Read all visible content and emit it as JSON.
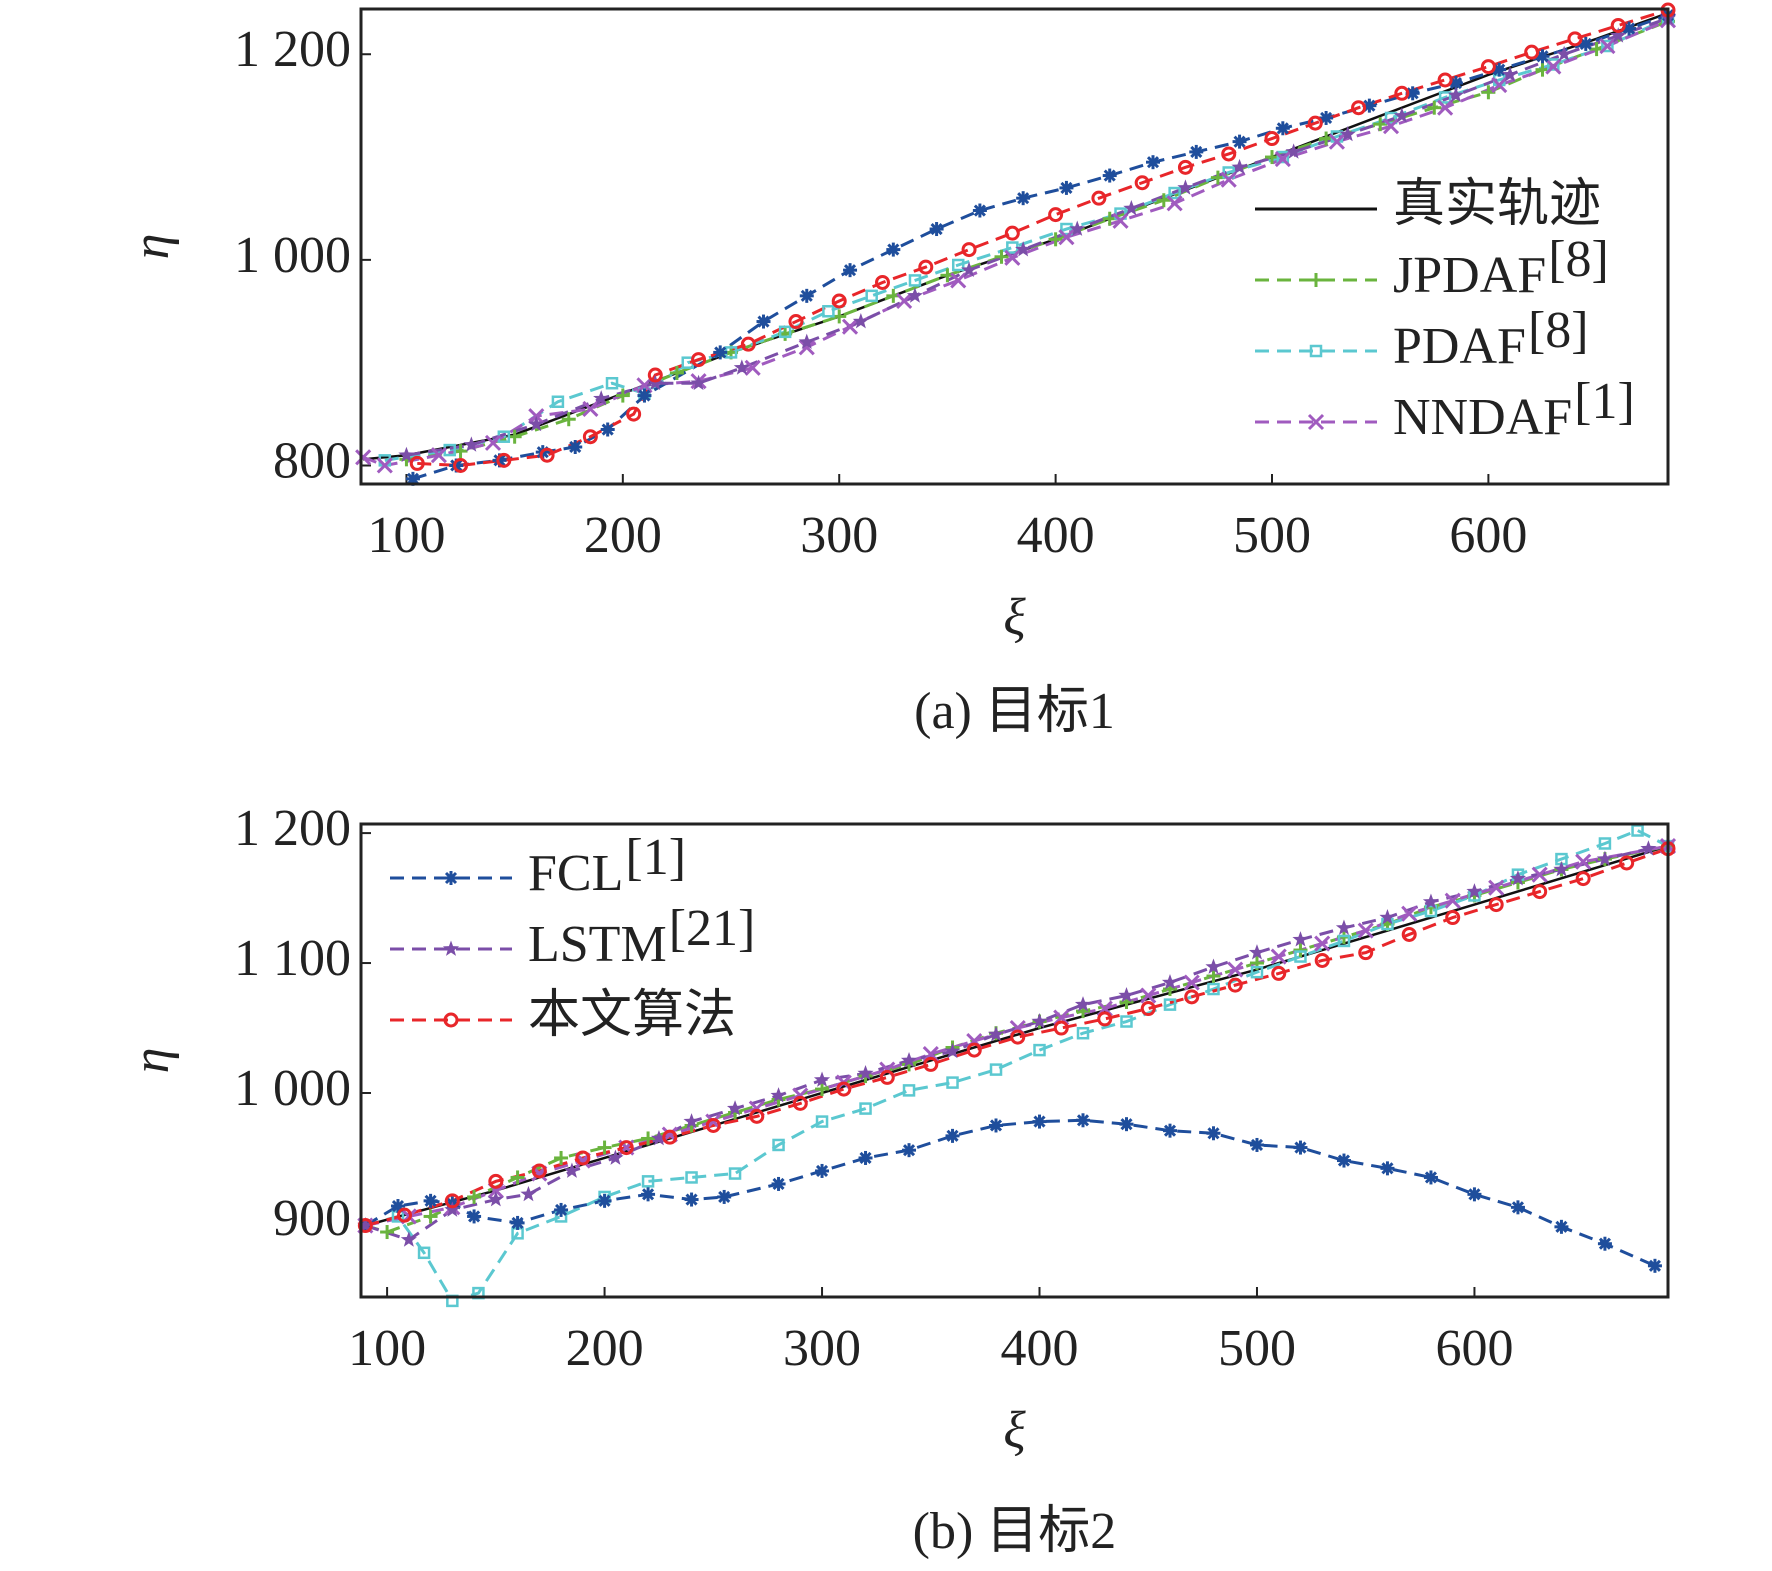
{
  "chart_data": [
    {
      "type": "line",
      "caption": "(a) 目标1",
      "xlabel": "ξ",
      "ylabel": "η",
      "xlim": [
        79,
        683
      ],
      "ylim": [
        782,
        1244
      ],
      "xticks": [
        100,
        200,
        300,
        400,
        500,
        600
      ],
      "yticks": [
        {
          "value": 800,
          "label": "800"
        },
        {
          "value": 1000,
          "label": "1 000"
        },
        {
          "value": 1200,
          "label": "1 200"
        }
      ],
      "legend": "right",
      "series": [
        {
          "name": "真实轨迹",
          "color": "#111111",
          "marker": "none",
          "dash": false,
          "in_legend": true,
          "x": [
            80,
            100,
            150,
            200,
            250,
            300,
            350,
            400,
            450,
            500,
            550,
            600,
            650,
            683
          ],
          "values": [
            806,
            810,
            830,
            870,
            910,
            945,
            985,
            1020,
            1060,
            1100,
            1140,
            1180,
            1215,
            1240
          ]
        },
        {
          "name": "JPDAF",
          "ref": "[8]",
          "color": "#6ab43e",
          "marker": "plus",
          "dash": true,
          "in_legend": true,
          "x": [
            100,
            125,
            150,
            175,
            200,
            225,
            250,
            275,
            300,
            325,
            350,
            375,
            400,
            425,
            450,
            475,
            500,
            525,
            550,
            575,
            600,
            625,
            650,
            683
          ],
          "values": [
            806,
            814,
            828,
            845,
            868,
            890,
            910,
            928,
            945,
            965,
            985,
            1003,
            1020,
            1040,
            1058,
            1080,
            1100,
            1118,
            1132,
            1148,
            1163,
            1185,
            1205,
            1232
          ]
        },
        {
          "name": "PDAF",
          "ref": "[8]",
          "color": "#5bc8d0",
          "marker": "square",
          "dash": true,
          "in_legend": true,
          "x": [
            90,
            120,
            145,
            170,
            195,
            210,
            230,
            250,
            275,
            295,
            315,
            335,
            355,
            380,
            405,
            430,
            455,
            480,
            505,
            530,
            555,
            580,
            605,
            630,
            655,
            683
          ],
          "values": [
            805,
            815,
            828,
            862,
            880,
            870,
            900,
            910,
            930,
            950,
            965,
            980,
            995,
            1012,
            1030,
            1045,
            1065,
            1085,
            1100,
            1120,
            1138,
            1158,
            1175,
            1190,
            1208,
            1235
          ]
        },
        {
          "name": "NNDAF",
          "ref": "[1]",
          "color": "#a05bbf",
          "marker": "cross",
          "dash": true,
          "in_legend": true,
          "x": [
            80,
            90,
            115,
            140,
            160,
            185,
            210,
            235,
            260,
            285,
            305,
            330,
            355,
            380,
            405,
            430,
            455,
            480,
            505,
            530,
            555,
            580,
            605,
            630,
            655,
            683
          ],
          "values": [
            808,
            800,
            810,
            822,
            848,
            855,
            878,
            882,
            895,
            915,
            935,
            960,
            980,
            1002,
            1022,
            1038,
            1055,
            1078,
            1098,
            1115,
            1130,
            1148,
            1170,
            1188,
            1208,
            1233
          ]
        },
        {
          "name": "FCL",
          "ref": "[1]",
          "color": "#1f4e9c",
          "marker": "asterisk",
          "dash": true,
          "in_legend": false,
          "x": [
            103,
            123,
            143,
            163,
            178,
            193,
            210,
            245,
            265,
            285,
            305,
            325,
            345,
            365,
            385,
            405,
            425,
            445,
            465,
            485,
            505,
            525,
            545,
            565,
            585,
            605,
            625,
            645,
            665,
            683
          ],
          "values": [
            787,
            800,
            805,
            813,
            818,
            835,
            868,
            910,
            940,
            965,
            990,
            1010,
            1030,
            1048,
            1060,
            1070,
            1082,
            1095,
            1105,
            1115,
            1128,
            1138,
            1150,
            1162,
            1172,
            1185,
            1198,
            1210,
            1225,
            1238
          ]
        },
        {
          "name": "LSTM",
          "ref": "[21]",
          "color": "#7b4ea8",
          "marker": "star",
          "dash": true,
          "in_legend": false,
          "x": [
            100,
            130,
            160,
            190,
            215,
            235,
            255,
            285,
            310,
            335,
            360,
            385,
            410,
            435,
            460,
            485,
            510,
            535,
            560,
            585,
            610,
            635,
            660,
            683
          ],
          "values": [
            810,
            820,
            840,
            865,
            880,
            880,
            895,
            920,
            940,
            965,
            990,
            1010,
            1030,
            1050,
            1070,
            1090,
            1105,
            1122,
            1140,
            1160,
            1180,
            1200,
            1218,
            1235
          ]
        },
        {
          "name": "本文算法",
          "color": "#e8262a",
          "marker": "circle",
          "dash": true,
          "in_legend": false,
          "x": [
            105,
            125,
            145,
            165,
            185,
            205,
            215,
            235,
            258,
            280,
            300,
            320,
            340,
            360,
            380,
            400,
            420,
            440,
            460,
            480,
            500,
            520,
            540,
            560,
            580,
            600,
            620,
            640,
            660,
            683
          ],
          "values": [
            802,
            800,
            805,
            810,
            828,
            850,
            888,
            903,
            918,
            940,
            960,
            978,
            993,
            1010,
            1026,
            1044,
            1060,
            1075,
            1090,
            1103,
            1118,
            1133,
            1148,
            1162,
            1175,
            1188,
            1202,
            1215,
            1228,
            1243
          ]
        }
      ]
    },
    {
      "type": "line",
      "caption": "(b) 目标2",
      "xlabel": "ξ",
      "ylabel": "η",
      "xlim": [
        88,
        689
      ],
      "ylim": [
        843,
        1207
      ],
      "xticks": [
        100,
        200,
        300,
        400,
        500,
        600
      ],
      "yticks": [
        {
          "value": 900,
          "label": "900"
        },
        {
          "value": 1000,
          "label": "1 000"
        },
        {
          "value": 1100,
          "label": "1 100"
        },
        {
          "value": 1200,
          "label": "1 200"
        }
      ],
      "legend": "upper left",
      "series": [
        {
          "name": "真实轨迹",
          "color": "#111111",
          "marker": "none",
          "dash": false,
          "in_legend": false,
          "x": [
            90,
            150,
            200,
            300,
            400,
            500,
            600,
            689
          ],
          "values": [
            898,
            925,
            950,
            1000,
            1050,
            1095,
            1145,
            1190
          ]
        },
        {
          "name": "JPDAF",
          "ref": "[8]",
          "color": "#6ab43e",
          "marker": "plus",
          "dash": true,
          "in_legend": false,
          "x": [
            90,
            100,
            120,
            140,
            160,
            180,
            200,
            220,
            240,
            260,
            280,
            300,
            320,
            340,
            360,
            380,
            400,
            420,
            440,
            460,
            480,
            500,
            520,
            540,
            560,
            580,
            600,
            620,
            640,
            660,
            689
          ],
          "values": [
            898,
            893,
            905,
            920,
            935,
            950,
            958,
            965,
            975,
            985,
            995,
            1003,
            1013,
            1022,
            1035,
            1046,
            1055,
            1063,
            1070,
            1080,
            1090,
            1100,
            1110,
            1120,
            1130,
            1143,
            1152,
            1162,
            1172,
            1180,
            1190
          ]
        },
        {
          "name": "PDAF",
          "ref": "[8]",
          "color": "#5bc8d0",
          "marker": "square",
          "dash": true,
          "in_legend": false,
          "x": [
            90,
            105,
            117,
            130,
            142,
            160,
            180,
            200,
            220,
            240,
            260,
            280,
            300,
            320,
            340,
            360,
            380,
            400,
            420,
            440,
            460,
            480,
            500,
            520,
            540,
            560,
            580,
            600,
            620,
            640,
            660,
            675,
            689
          ],
          "values": [
            898,
            905,
            877,
            840,
            846,
            892,
            905,
            920,
            932,
            935,
            938,
            960,
            978,
            988,
            1002,
            1008,
            1018,
            1033,
            1046,
            1055,
            1068,
            1080,
            1093,
            1105,
            1117,
            1130,
            1140,
            1152,
            1168,
            1180,
            1192,
            1202,
            1190
          ]
        },
        {
          "name": "NNDAF",
          "ref": "[1]",
          "color": "#a05bbf",
          "marker": "cross",
          "dash": true,
          "in_legend": false,
          "x": [
            90,
            110,
            130,
            150,
            170,
            190,
            210,
            230,
            250,
            270,
            290,
            310,
            330,
            350,
            370,
            390,
            410,
            430,
            450,
            470,
            490,
            510,
            530,
            550,
            570,
            590,
            610,
            630,
            650,
            689
          ],
          "values": [
            898,
            905,
            912,
            925,
            938,
            948,
            958,
            968,
            978,
            988,
            998,
            1008,
            1018,
            1030,
            1040,
            1050,
            1058,
            1065,
            1075,
            1085,
            1095,
            1105,
            1115,
            1125,
            1138,
            1148,
            1158,
            1168,
            1178,
            1190
          ]
        },
        {
          "name": "FCL",
          "ref": "[1]",
          "color": "#1f4e9c",
          "marker": "asterisk",
          "dash": true,
          "in_legend": true,
          "x": [
            90,
            105,
            120,
            130,
            140,
            160,
            180,
            200,
            220,
            240,
            255,
            280,
            300,
            320,
            340,
            360,
            380,
            400,
            420,
            440,
            460,
            480,
            500,
            520,
            540,
            560,
            580,
            600,
            620,
            640,
            660,
            683
          ],
          "values": [
            898,
            913,
            917,
            915,
            905,
            900,
            910,
            917,
            922,
            918,
            920,
            930,
            940,
            950,
            956,
            967,
            975,
            978,
            979,
            976,
            971,
            969,
            960,
            958,
            948,
            942,
            935,
            922,
            912,
            897,
            884,
            867
          ]
        },
        {
          "name": "LSTM",
          "ref": "[21]",
          "color": "#7b4ea8",
          "marker": "star",
          "dash": true,
          "in_legend": true,
          "x": [
            90,
            110,
            130,
            150,
            165,
            185,
            205,
            225,
            240,
            260,
            280,
            300,
            320,
            340,
            360,
            380,
            400,
            420,
            440,
            460,
            480,
            500,
            520,
            540,
            560,
            580,
            600,
            620,
            640,
            660,
            680
          ],
          "values": [
            898,
            887,
            910,
            918,
            922,
            940,
            950,
            965,
            978,
            988,
            998,
            1010,
            1015,
            1025,
            1032,
            1045,
            1055,
            1068,
            1075,
            1085,
            1097,
            1108,
            1118,
            1127,
            1135,
            1147,
            1155,
            1165,
            1172,
            1180,
            1188
          ]
        },
        {
          "name": "本文算法",
          "color": "#e8262a",
          "marker": "circle",
          "dash": true,
          "in_legend": true,
          "x": [
            90,
            108,
            130,
            150,
            170,
            190,
            210,
            230,
            250,
            270,
            290,
            310,
            330,
            350,
            370,
            390,
            410,
            430,
            450,
            470,
            490,
            510,
            530,
            550,
            570,
            590,
            610,
            630,
            650,
            670,
            689
          ],
          "values": [
            898,
            906,
            917,
            932,
            940,
            950,
            958,
            966,
            975,
            982,
            992,
            1003,
            1012,
            1022,
            1033,
            1043,
            1050,
            1057,
            1065,
            1074,
            1083,
            1092,
            1102,
            1108,
            1122,
            1135,
            1145,
            1155,
            1165,
            1177,
            1188
          ]
        }
      ]
    }
  ]
}
